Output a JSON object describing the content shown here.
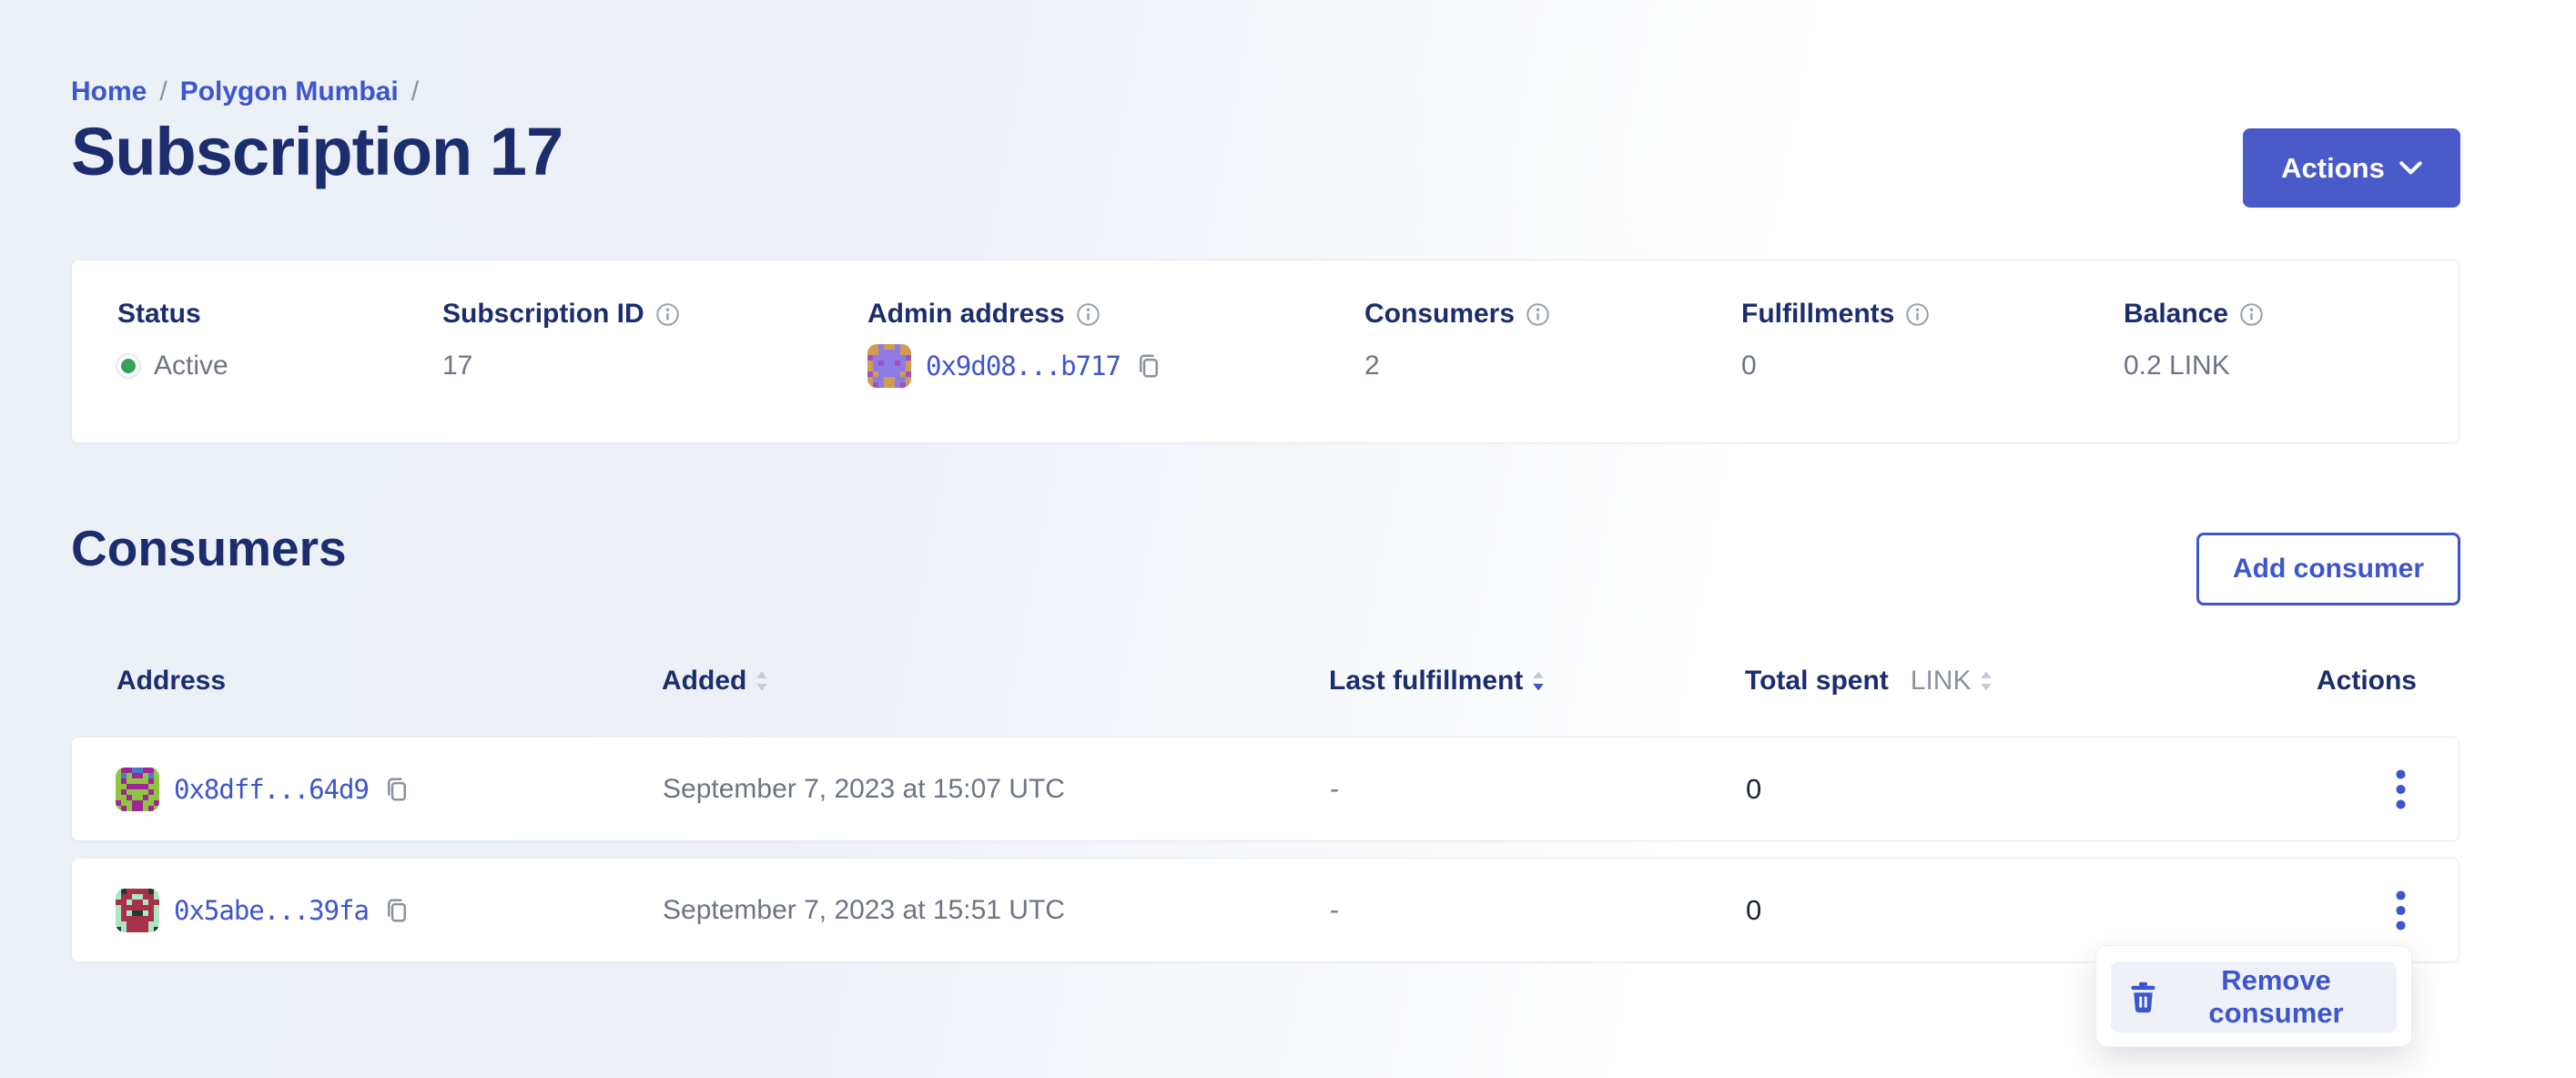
{
  "breadcrumb": {
    "home": "Home",
    "sep1": "/",
    "network": "Polygon Mumbai",
    "sep2": "/"
  },
  "header": {
    "title": "Subscription 17",
    "actions_button": "Actions"
  },
  "summary": {
    "status": {
      "label": "Status",
      "value": "Active"
    },
    "subscription_id": {
      "label": "Subscription ID",
      "value": "17"
    },
    "admin_address": {
      "label": "Admin address",
      "value": "0x9d08...b717"
    },
    "consumers": {
      "label": "Consumers",
      "value": "2"
    },
    "fulfillments": {
      "label": "Fulfillments",
      "value": "0"
    },
    "balance": {
      "label": "Balance",
      "value": "0.2 LINK"
    }
  },
  "consumers_section": {
    "heading": "Consumers",
    "add_button": "Add consumer",
    "table": {
      "headers": {
        "address": "Address",
        "added": "Added",
        "last_fulfillment": "Last fulfillment",
        "total_spent": "Total spent",
        "total_spent_unit": "LINK",
        "actions": "Actions"
      },
      "sort_state": {
        "added": "none",
        "last_fulfillment": "desc",
        "total_spent": "none"
      },
      "rows": [
        {
          "address": "0x8dff...64d9",
          "added": "September 7, 2023 at 15:07 UTC",
          "last_fulfillment": "-",
          "total_spent": "0"
        },
        {
          "address": "0x5abe...39fa",
          "added": "September 7, 2023 at 15:51 UTC",
          "last_fulfillment": "-",
          "total_spent": "0"
        }
      ]
    }
  },
  "context_menu": {
    "remove_label": "Remove consumer"
  },
  "icons": {
    "info": "ⓘ",
    "copy": "⧉",
    "chevron_down": "⌄",
    "kebab": "⋮",
    "trash": "🗑",
    "sort": "⇅",
    "status_dot": "●"
  },
  "colors": {
    "brand_blue": "#3e56cc",
    "button_blue": "#4a5ac9",
    "navy_heading": "#1c2d6e",
    "muted_text": "#6d7483",
    "active_green": "#35a159",
    "card_border": "#e7eaf0",
    "menu_item_bg": "#eef1f8",
    "page_bg_left": "#edf1f7",
    "page_bg_right": "#ffffff"
  },
  "avatars": {
    "admin": {
      "palette": [
        "#cf9c52",
        "#8d7ce6",
        "#a64ec0"
      ],
      "grid": [
        "00100100",
        "00111100",
        "21111112",
        "01211210",
        "01111110",
        "20111102",
        "01100110",
        "02100120"
      ]
    },
    "consumer1": {
      "palette": [
        "#a2249c",
        "#8ec63f",
        "#4a7ac8"
      ],
      "grid": [
        "10022001",
        "12100121",
        "10111101",
        "11000011",
        "10111101",
        "11011011",
        "01100110",
        "10100101"
      ]
    },
    "consumer2": {
      "palette": [
        "#aee6c4",
        "#a63148",
        "#1d3b3b"
      ],
      "grid": [
        "02111120",
        "01100110",
        "11011011",
        "01111110",
        "01022010",
        "01111110",
        "00111100",
        "20111102"
      ]
    }
  }
}
